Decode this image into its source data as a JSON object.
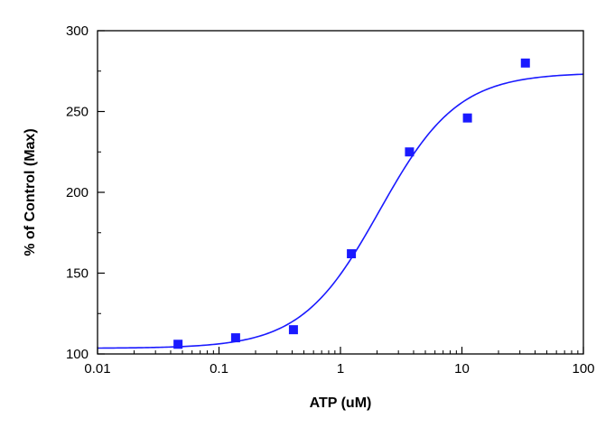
{
  "chart_data": {
    "type": "scatter",
    "title": "",
    "xlabel": "ATP (uM)",
    "ylabel": "% of Control (Max)",
    "x_scale": "log",
    "xlim": [
      0.01,
      100
    ],
    "ylim": [
      100,
      300
    ],
    "x_ticks": [
      0.01,
      0.1,
      1,
      10,
      100
    ],
    "x_tick_labels": [
      "0.01",
      "0.1",
      "1",
      "10",
      "100"
    ],
    "y_ticks": [
      100,
      150,
      200,
      250,
      300
    ],
    "y_tick_labels": [
      "100",
      "150",
      "200",
      "250",
      "300"
    ],
    "grid": false,
    "colors": {
      "marker": "#1a1aff",
      "curve": "#1a1aff",
      "axes": "#000000"
    },
    "series": [
      {
        "type": "scatter",
        "marker": "square",
        "x": [
          0.046,
          0.137,
          0.41,
          1.23,
          3.7,
          11.1,
          33.3
        ],
        "y": [
          106,
          110,
          115,
          162,
          225,
          246,
          280
        ]
      },
      {
        "type": "line",
        "fit": "four-parameter logistic",
        "bottom": 103.5,
        "top": 274,
        "ec50": 2.1,
        "hill": 1.35
      }
    ]
  }
}
